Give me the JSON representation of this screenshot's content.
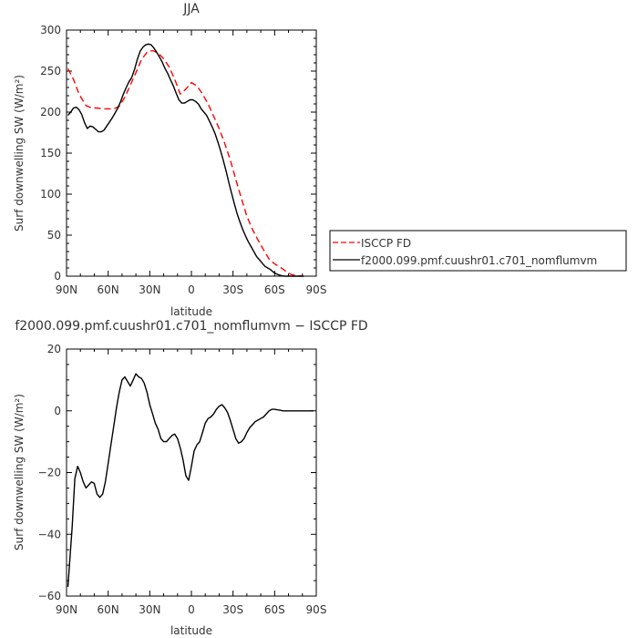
{
  "chart_data": [
    {
      "type": "line",
      "title": "JJA",
      "xlabel": "latitude",
      "ylabel": "Surf downwelling SW (W/m²)",
      "xlim": [
        90,
        -90
      ],
      "ylim": [
        0,
        300
      ],
      "x_ticks": [
        90,
        60,
        30,
        0,
        -30,
        -60,
        -90
      ],
      "x_tick_labels": [
        "90N",
        "60N",
        "30N",
        "0",
        "30S",
        "60S",
        "90S"
      ],
      "y_ticks": [
        0,
        50,
        100,
        150,
        200,
        250,
        300
      ],
      "y_tick_labels": [
        "0",
        "50",
        "100",
        "150",
        "200",
        "250",
        "300"
      ],
      "legend_position": "right",
      "series": [
        {
          "name": "ISCCP FD",
          "color": "#ff0000",
          "dash": "dashed",
          "x": [
            89,
            85,
            81,
            76,
            72,
            68,
            64,
            60,
            56,
            52,
            48,
            44,
            40,
            36,
            32,
            28,
            24,
            20,
            16,
            12,
            8,
            4,
            0,
            -4,
            -8,
            -12,
            -16,
            -20,
            -24,
            -28,
            -32,
            -36,
            -40,
            -44,
            -48,
            -52,
            -56,
            -60,
            -64,
            -68,
            -72,
            -76,
            -80
          ],
          "y": [
            253,
            240,
            222,
            208,
            205,
            205,
            204,
            204,
            204,
            207,
            218,
            233,
            248,
            264,
            273,
            275,
            272,
            265,
            255,
            240,
            222,
            228,
            236,
            232,
            222,
            210,
            195,
            180,
            162,
            142,
            118,
            95,
            73,
            57,
            44,
            32,
            21,
            15,
            11,
            6,
            2,
            0.5,
            0
          ]
        },
        {
          "name": "f2000.099.pmf.cuushr01.c701_nomflumvm",
          "color": "#000000",
          "dash": "solid",
          "x": [
            89,
            87,
            85,
            83,
            81,
            79,
            77,
            75,
            73,
            71,
            69,
            67,
            65,
            63,
            61,
            59,
            57,
            55,
            53,
            51,
            49,
            47,
            45,
            43,
            41,
            39,
            37,
            35,
            33,
            31,
            29,
            27,
            25,
            23,
            21,
            19,
            17,
            15,
            13,
            11,
            9,
            7,
            5,
            3,
            1,
            -1,
            -3,
            -5,
            -7,
            -9,
            -11,
            -13,
            -15,
            -17,
            -19,
            -21,
            -23,
            -25,
            -27,
            -29,
            -31,
            -33,
            -35,
            -37,
            -39,
            -41,
            -43,
            -45,
            -47,
            -49,
            -51,
            -53,
            -55,
            -57,
            -59,
            -61,
            -63,
            -65,
            -67,
            -69,
            -71,
            -73,
            -75,
            -77,
            -79,
            -81
          ],
          "y": [
            196,
            200,
            205,
            206,
            203,
            197,
            187,
            180,
            183,
            182,
            179,
            176,
            176,
            178,
            183,
            188,
            193,
            199,
            205,
            213,
            222,
            230,
            237,
            242,
            252,
            264,
            274,
            279,
            282,
            283,
            282,
            278,
            273,
            267,
            261,
            253,
            247,
            239,
            232,
            223,
            215,
            211,
            211,
            213,
            215,
            215,
            213,
            210,
            204,
            200,
            196,
            189,
            182,
            174,
            164,
            153,
            141,
            128,
            114,
            101,
            88,
            76,
            66,
            57,
            49,
            42,
            36,
            30,
            24,
            20,
            16,
            12,
            10,
            8,
            5,
            3,
            1.5,
            0.5,
            0,
            0,
            0,
            0,
            0,
            0,
            0,
            0
          ]
        }
      ]
    },
    {
      "type": "line",
      "title": "f2000.099.pmf.cuushr01.c701_nomflumvm − ISCCP FD",
      "xlabel": "latitude",
      "ylabel": "Surf downwelling SW (W/m²)",
      "xlim": [
        90,
        -90
      ],
      "ylim": [
        -60,
        20
      ],
      "x_ticks": [
        90,
        60,
        30,
        0,
        -30,
        -60,
        -90
      ],
      "x_tick_labels": [
        "90N",
        "60N",
        "30N",
        "0",
        "30S",
        "60S",
        "90S"
      ],
      "y_ticks": [
        -60,
        -40,
        -20,
        0,
        20
      ],
      "y_tick_labels": [
        "−60",
        "−40",
        "−20",
        "0",
        "20"
      ],
      "series": [
        {
          "color": "#000000",
          "dash": "solid",
          "x": [
            89,
            86,
            84,
            82,
            80,
            78,
            76,
            74,
            72,
            70,
            68,
            66,
            64,
            62,
            60,
            58,
            56,
            54,
            52,
            50,
            48,
            46,
            44,
            42,
            40,
            38,
            36,
            34,
            32,
            30,
            28,
            26,
            24,
            22,
            20,
            18,
            16,
            14,
            12,
            10,
            8,
            6,
            4,
            2,
            0,
            -2,
            -4,
            -6,
            -8,
            -10,
            -12,
            -14,
            -16,
            -18,
            -20,
            -22,
            -24,
            -26,
            -28,
            -30,
            -32,
            -34,
            -36,
            -38,
            -40,
            -42,
            -44,
            -46,
            -48,
            -50,
            -52,
            -54,
            -56,
            -58,
            -60,
            -62,
            -64,
            -66,
            -68,
            -70,
            -72,
            -74,
            -76,
            -78,
            -80,
            -82,
            -84,
            -86,
            -88
          ],
          "y": [
            -57,
            -38,
            -22,
            -18,
            -20,
            -23,
            -25,
            -24,
            -23,
            -23.5,
            -27,
            -28,
            -27,
            -23,
            -17,
            -11,
            -5,
            1,
            6,
            10,
            11,
            9.5,
            8,
            10,
            12,
            11,
            10.5,
            9,
            6,
            2,
            -1,
            -4,
            -6,
            -9,
            -10,
            -10,
            -9,
            -8,
            -7.5,
            -9,
            -12,
            -16,
            -21,
            -22.5,
            -18,
            -13,
            -11,
            -10,
            -7,
            -4,
            -2.5,
            -2,
            -1,
            0.5,
            1.5,
            2,
            1,
            -0.5,
            -3,
            -6,
            -9,
            -10.5,
            -10,
            -9,
            -7,
            -5.5,
            -4.5,
            -3.5,
            -3,
            -2.5,
            -2,
            -1,
            0,
            0.5,
            0.5,
            0.3,
            0.2,
            0,
            0,
            0,
            0,
            0,
            0,
            0,
            0,
            0,
            0,
            0,
            0
          ]
        }
      ]
    }
  ]
}
